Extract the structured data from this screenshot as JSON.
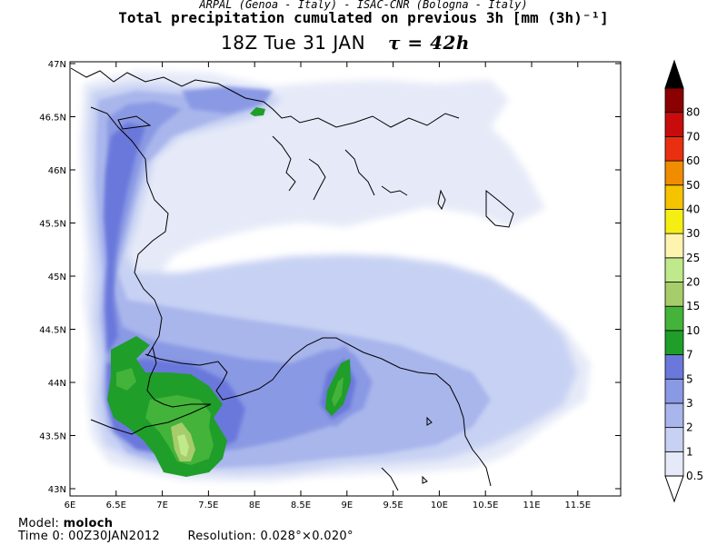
{
  "header": {
    "source_line": "ARPAL (Genoa - Italy)  -  ISAC-CNR (Bologna - Italy)",
    "title": "Total precipitation cumulated on previous 3h [mm (3h)⁻¹]",
    "time_label": "18Z Tue 31 JAN",
    "forecast_label": "τ = 42h"
  },
  "map": {
    "lon_labels": [
      "6E",
      "6.5E",
      "7E",
      "7.5E",
      "8E",
      "8.5E",
      "9E",
      "9.5E",
      "10E",
      "10.5E",
      "11E",
      "11.5E"
    ],
    "lat_labels": [
      "47N",
      "46.5N",
      "46N",
      "45.5N",
      "45N",
      "44.5N",
      "44N",
      "43.5N",
      "43N"
    ]
  },
  "legend": {
    "levels": [
      "0.5",
      "1",
      "2",
      "3",
      "5",
      "7",
      "10",
      "15",
      "20",
      "25",
      "30",
      "40",
      "50",
      "60",
      "70",
      "80"
    ],
    "colors": [
      "#e6eaf8",
      "#c7d1f3",
      "#a9b6ec",
      "#8a99e4",
      "#6a78db",
      "#1f9e2a",
      "#43b33a",
      "#a7cc6b",
      "#bfe98a",
      "#fff3b0",
      "#f4ee14",
      "#f5c300",
      "#f08c00",
      "#e83010",
      "#c80c0c",
      "#8b0000"
    ],
    "over_color": "#000000",
    "under_color": "#ffffff"
  },
  "footer": {
    "model_label": "Model:",
    "model_name": "moloch",
    "time0_label": "Time 0:",
    "time0_value": "00Z30JAN2012",
    "resolution_label": "Resolution:",
    "resolution_value": "0.028°×0.020°"
  }
}
